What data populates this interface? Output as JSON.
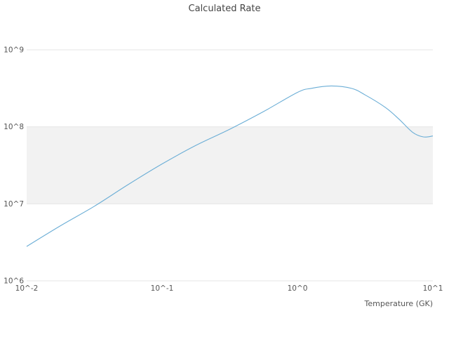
{
  "chart_data": {
    "type": "line",
    "title": "Calculated Rate",
    "xlabel": "Temperature (GK)",
    "ylabel": "",
    "x_scale": "log",
    "y_scale": "log",
    "xlim": [
      0.01,
      10
    ],
    "ylim": [
      1000000,
      1000000000
    ],
    "grid": true,
    "legend": "none",
    "x_ticks": [
      {
        "value": 0.01,
        "label": "10^-2"
      },
      {
        "value": 0.1,
        "label": "10^-1"
      },
      {
        "value": 1,
        "label": "10^0"
      },
      {
        "value": 10,
        "label": "10^1"
      }
    ],
    "y_ticks": [
      {
        "value": 1000000,
        "label": "10^6"
      },
      {
        "value": 10000000,
        "label": "10^7"
      },
      {
        "value": 100000000,
        "label": "10^8"
      },
      {
        "value": 1000000000,
        "label": "10^9"
      }
    ],
    "shaded_band": {
      "y_from": 10000000,
      "y_to": 100000000,
      "color": "#f2f2f2"
    },
    "colors": {
      "line": "#6baed6",
      "grid": "#e6e6e6",
      "band_edge": "#e0e0e0",
      "background": "#ffffff"
    },
    "series": [
      {
        "name": "Calculated Rate",
        "x": [
          0.01,
          0.0178,
          0.0316,
          0.0562,
          0.1,
          0.178,
          0.316,
          0.562,
          1.0,
          1.26,
          1.78,
          2.51,
          3.16,
          4.47,
          5.62,
          7.08,
          8.5,
          10
        ],
        "y": [
          2800000.0,
          5200000.0,
          9300000.0,
          17800000.0,
          33000000.0,
          57500000.0,
          93000000.0,
          158000000.0,
          280000000.0,
          316000000.0,
          340000000.0,
          316000000.0,
          260000000.0,
          178000000.0,
          126000000.0,
          85000000.0,
          74000000.0,
          76000000.0
        ]
      }
    ]
  }
}
